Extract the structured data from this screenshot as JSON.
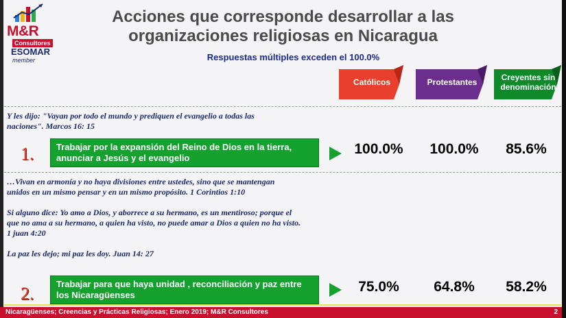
{
  "logo": {
    "name": "M&R",
    "sub": "Consultores",
    "esomar": "ESOMAR",
    "member": "member"
  },
  "title": {
    "line1": "Acciones que corresponde desarrollar a las",
    "line2": "organizaciones religiosas en Nicaragua"
  },
  "subtitle": "Respuestas múltiples exceden el 100.0%",
  "columns": [
    {
      "label": "Católicos",
      "color": "#e8402c"
    },
    {
      "label": "Protestantes",
      "color": "#6b2e8c"
    },
    {
      "label": "Creyentes sin denominación",
      "color": "#0f8a2a"
    }
  ],
  "rows": [
    {
      "quote": "Y les dijo: \"Vayan por todo el mundo y prediquen el evangelio a todas las\nnaciones\". Marcos 16: 15",
      "number": "1.",
      "action": "Trabajar por la expansión del Reino de Dios en la tierra, anunciar a Jesús y el evangelio",
      "values": [
        "100.0%",
        "100.0%",
        "85.6%"
      ]
    },
    {
      "quote": "…Vivan en armonía y no haya divisiones entre ustedes, sino que se mantengan\nunidos en un mismo pensar y en un mismo propósito. 1 Corintios 1:10\n\nSi alguno dice: Yo amo a Dios, y aborrece a su hermano, es un mentiroso; porque el\nque no ama a su hermano, a quien ha visto, no puede amar a Dios a quien no ha visto.\n1 juan 4:20\n\nLa paz les dejo; mi paz les doy. Juan 14: 27",
      "number": "2.",
      "action": "Trabajar para que haya unidad , reconciliación y paz entre los Nicaragüenses",
      "values": [
        "75.0%",
        "64.8%",
        "58.2%"
      ]
    }
  ],
  "footer": {
    "text": "Nicaragüenses; Creencias y Prácticas Religiosas; Enero 2019; M&R Consultores",
    "page": "2"
  },
  "colors": {
    "accent_red": "#c8102e",
    "action_green": "#14a12d",
    "title_gray": "#4a4a4a",
    "subtitle_blue": "#1b2a8f"
  }
}
